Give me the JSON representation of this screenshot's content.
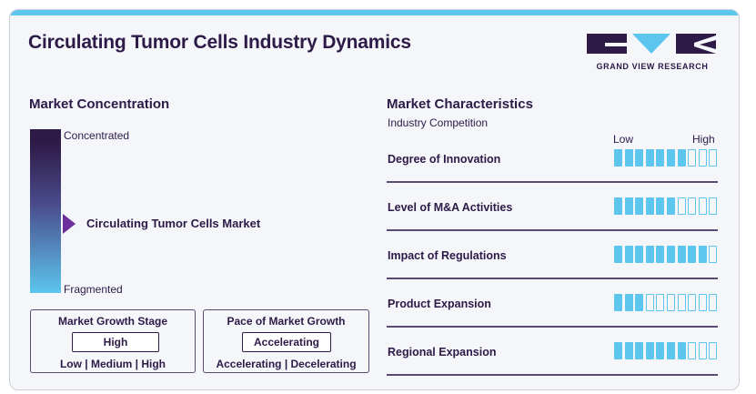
{
  "title": "Circulating Tumor Cells Industry Dynamics",
  "logo": {
    "text": "GRAND VIEW RESEARCH",
    "colors": {
      "dark": "#2d1a47",
      "accent": "#5cc6ee"
    }
  },
  "concentration": {
    "heading": "Market Concentration",
    "top_label": "Concentrated",
    "bottom_label": "Fragmented",
    "marker_label": "Circulating Tumor Cells Market",
    "marker_level": 0.58,
    "gradient_colors": [
      "#2d1a47",
      "#5cc6ee"
    ]
  },
  "growth_stage": {
    "title": "Market Growth Stage",
    "value": "High",
    "options": "Low | Medium | High"
  },
  "growth_pace": {
    "title": "Pace of Market Growth",
    "value": "Accelerating",
    "options": "Accelerating | Decelerating"
  },
  "characteristics": {
    "heading": "Market Characteristics",
    "subheading": "Industry Competition",
    "low_label": "Low",
    "high_label": "High",
    "total_segments": 10,
    "rows": [
      {
        "label": "Degree of Innovation",
        "level": 7
      },
      {
        "label": "Level of M&A Activities",
        "level": 6
      },
      {
        "label": "Impact of Regulations",
        "level": 9
      },
      {
        "label": "Product Expansion",
        "level": 3
      },
      {
        "label": "Regional Expansion",
        "level": 7
      }
    ]
  }
}
